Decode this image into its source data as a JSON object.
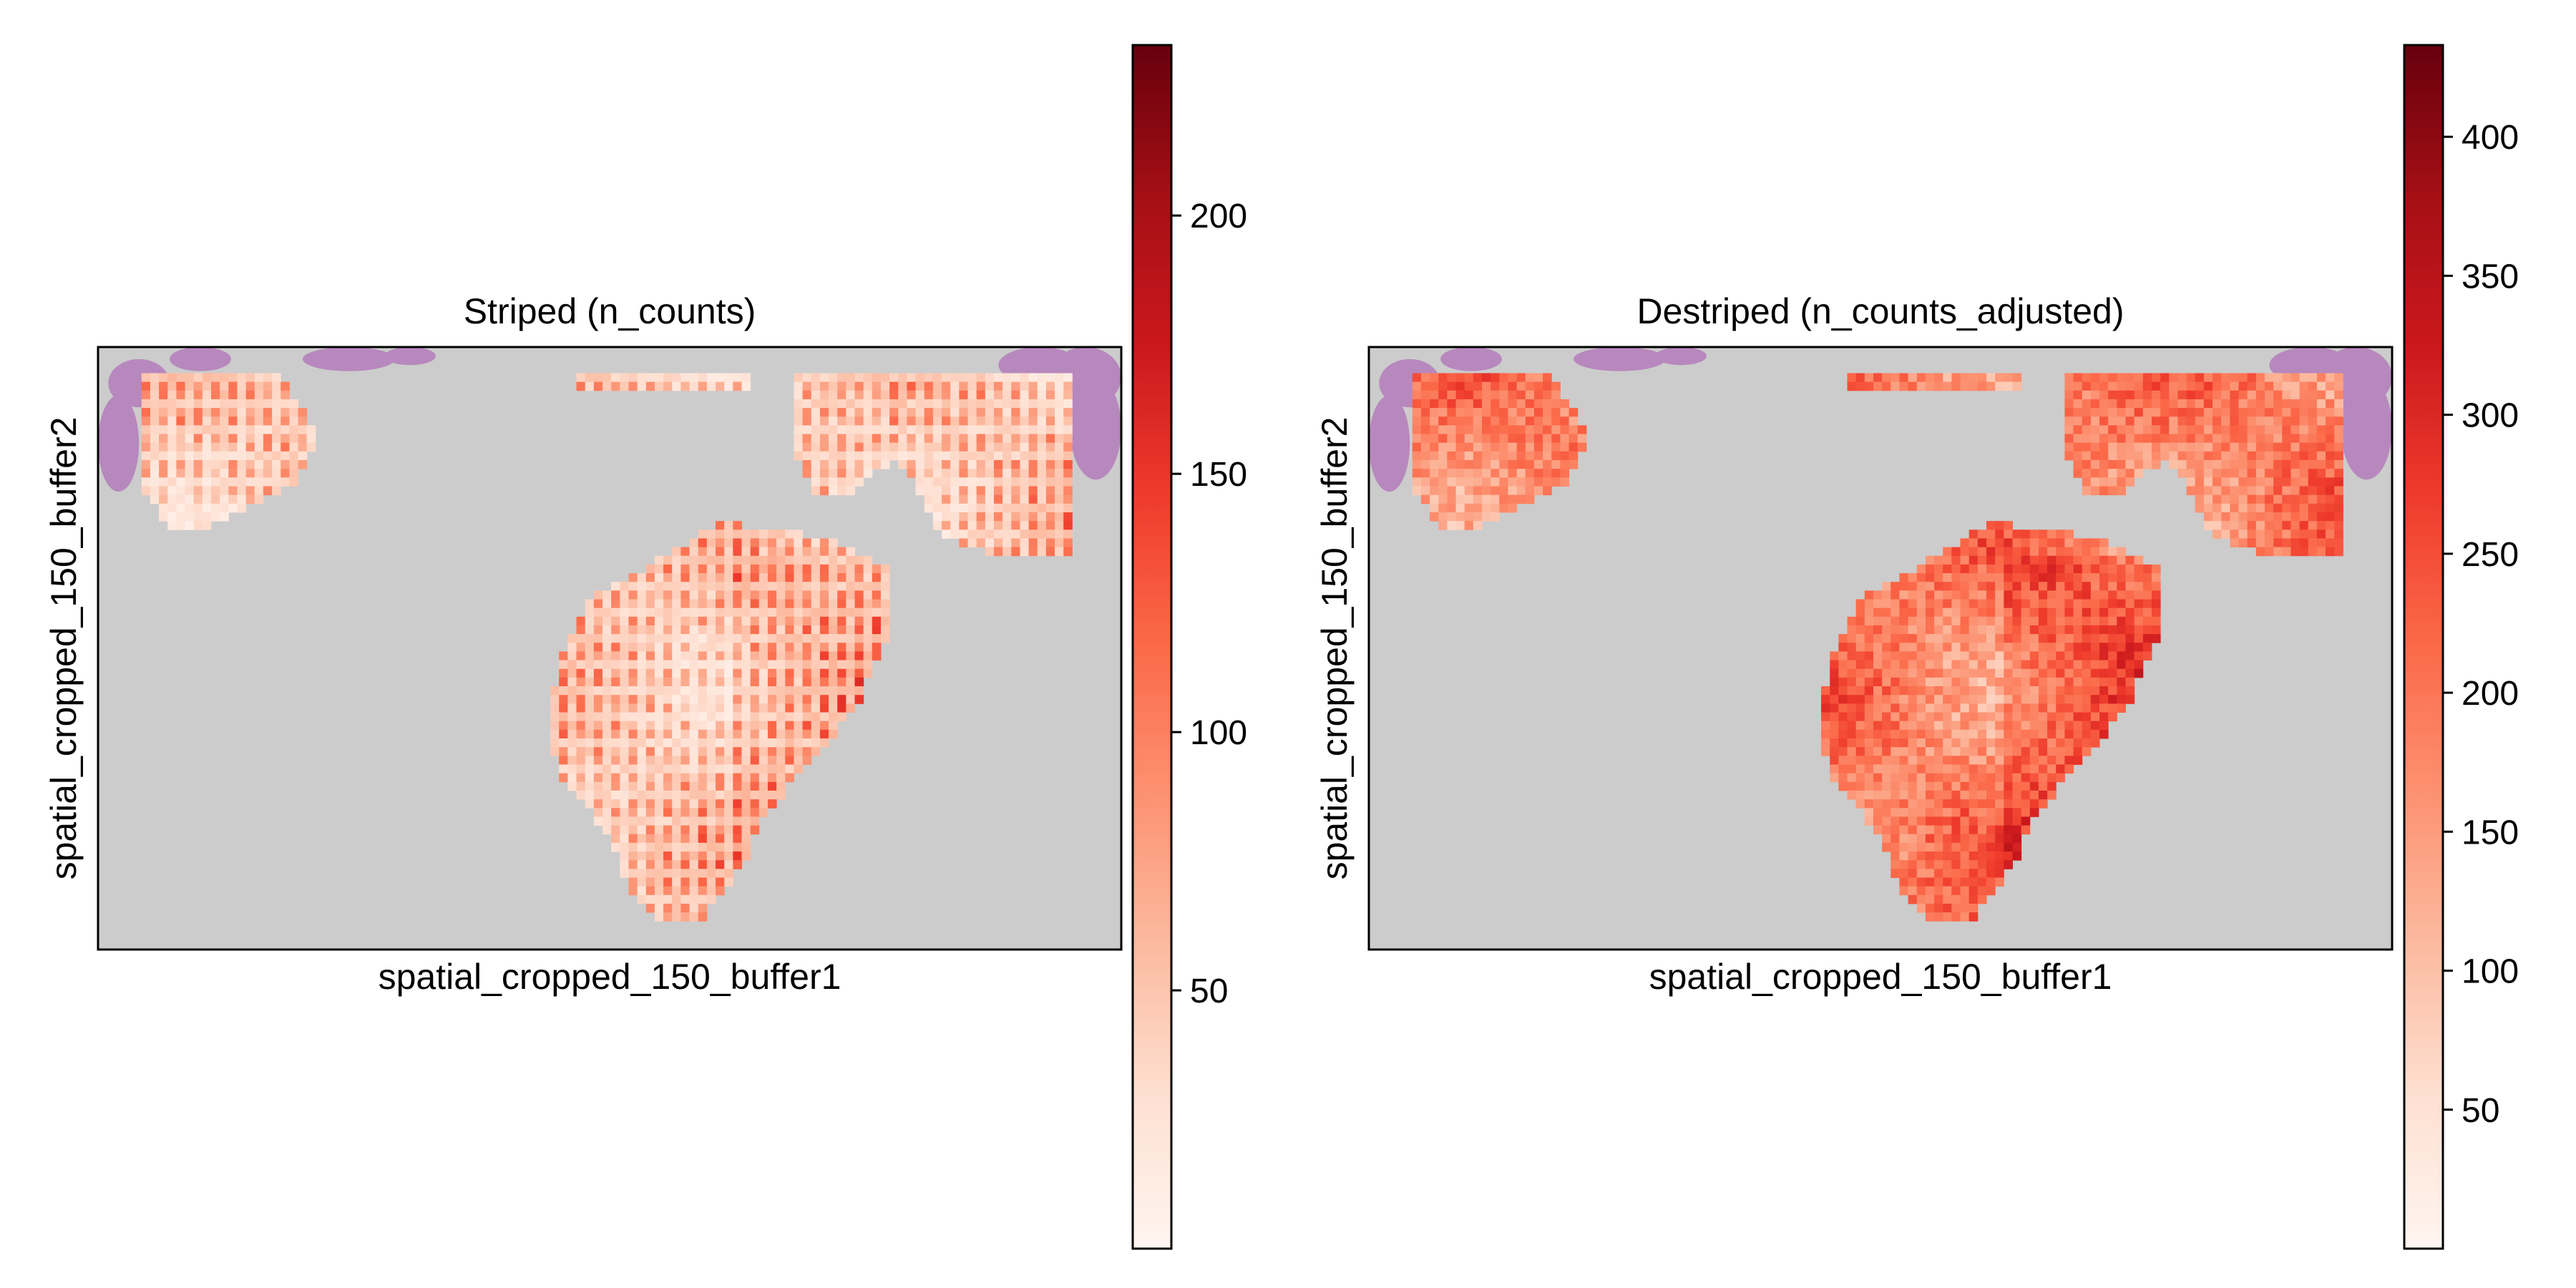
{
  "chart_data": [
    {
      "type": "heatmap",
      "title": "Striped (n_counts)",
      "xlabel": "spatial_cropped_150_buffer1",
      "ylabel": "spatial_cropped_150_buffer2",
      "colormap": "Reds",
      "colorbar": {
        "range": [
          0,
          233
        ],
        "ticks": [
          50,
          100,
          150,
          200
        ]
      },
      "summary": {
        "typical_value_range": [
          40,
          160
        ],
        "max_value": 233
      },
      "background": {
        "tissue_color": "#cccccc",
        "stain_color": "#b072b8"
      }
    },
    {
      "type": "heatmap",
      "title": "Destriped (n_counts_adjusted)",
      "xlabel": "spatial_cropped_150_buffer1",
      "ylabel": "spatial_cropped_150_buffer2",
      "colormap": "Reds",
      "colorbar": {
        "range": [
          0,
          433
        ],
        "ticks": [
          50,
          100,
          150,
          200,
          250,
          300,
          350,
          400
        ]
      },
      "summary": {
        "typical_value_range": [
          100,
          300
        ],
        "max_value": 433
      },
      "background": {
        "tissue_color": "#cccccc",
        "stain_color": "#b072b8"
      }
    }
  ],
  "colors": {
    "reds_scale": [
      "#fff5f0",
      "#fee0d2",
      "#fcbba1",
      "#fc9272",
      "#fb6a4a",
      "#ef3b2c",
      "#cb181d",
      "#a50f15",
      "#67000d"
    ],
    "panel_bg": "#cccccc",
    "stain": "#b072b8"
  }
}
